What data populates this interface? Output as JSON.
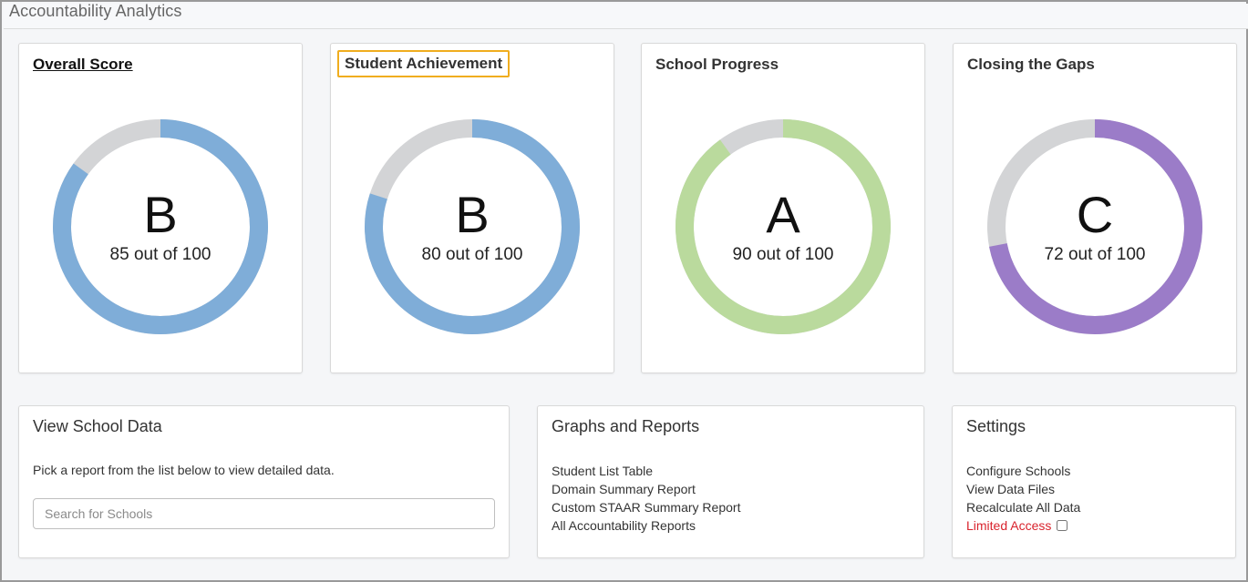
{
  "app": {
    "title": "Accountability Analytics"
  },
  "scores": [
    {
      "title": "Overall Score",
      "grade": "B",
      "score_text": "85 out of 100",
      "value": 85,
      "max": 100,
      "color": "#7fadd8",
      "style": "link"
    },
    {
      "title": "Student Achievement",
      "grade": "B",
      "score_text": "80 out of 100",
      "value": 80,
      "max": 100,
      "color": "#7fadd8",
      "style": "highlighted"
    },
    {
      "title": "School Progress",
      "grade": "A",
      "score_text": "90 out of 100",
      "value": 90,
      "max": 100,
      "color": "#bada9d",
      "style": "plain"
    },
    {
      "title": "Closing the Gaps",
      "grade": "C",
      "score_text": "72 out of 100",
      "value": 72,
      "max": 100,
      "color": "#9b7cc8",
      "style": "plain"
    }
  ],
  "donut_track_color": "#d3d4d6",
  "view_school_data": {
    "title": "View School Data",
    "description": "Pick a report from the list below to view detailed data.",
    "search_placeholder": "Search for Schools",
    "search_value": ""
  },
  "graphs_reports": {
    "title": "Graphs and Reports",
    "links": [
      "Student List Table",
      "Domain Summary Report",
      "Custom STAAR Summary Report",
      "All Accountability Reports"
    ]
  },
  "settings": {
    "title": "Settings",
    "links": [
      "Configure Schools",
      "View Data Files",
      "Recalculate All Data"
    ],
    "limited_access_label": "Limited Access",
    "limited_access_checked": false
  }
}
